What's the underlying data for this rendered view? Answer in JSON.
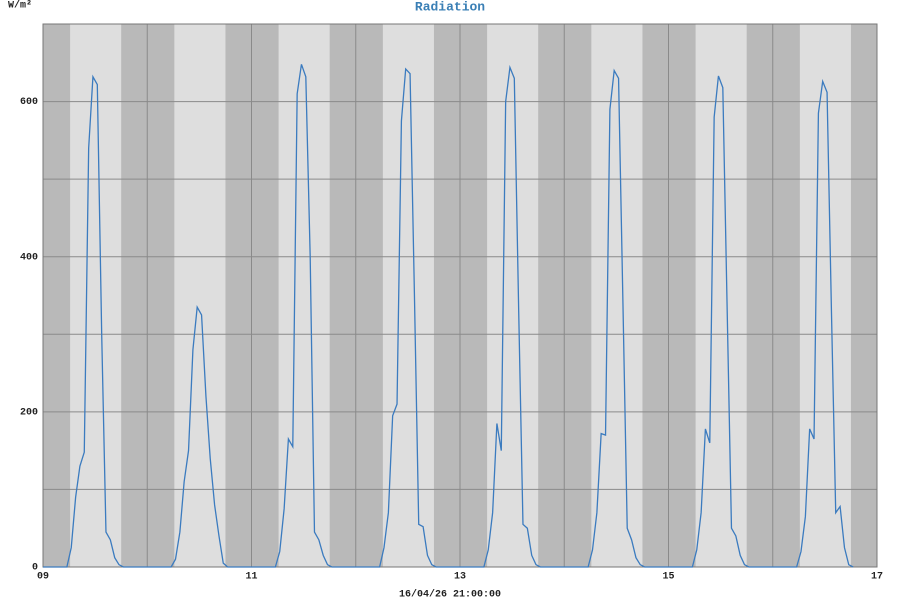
{
  "chart_data": {
    "type": "line",
    "title": "Radiation",
    "ylabel": "W/m²",
    "xlabel": "16/04/26 21:00:00",
    "color": "#3b7bbf",
    "grid": true,
    "xlim": [
      9,
      17
    ],
    "xticks": [
      {
        "value": 9,
        "label": "09"
      },
      {
        "value": 11,
        "label": "11"
      },
      {
        "value": 13,
        "label": "13"
      },
      {
        "value": 15,
        "label": "15"
      },
      {
        "value": 17,
        "label": "17"
      }
    ],
    "x_minor_ticks": [
      10,
      12,
      14,
      16
    ],
    "ylim": [
      0,
      700
    ],
    "yticks": [
      0,
      200,
      400,
      600
    ],
    "y_minor_ticks": [
      100,
      300,
      500
    ],
    "daylight": [
      0.26,
      0.75
    ],
    "x": [
      9.0,
      9.229,
      9.271,
      9.313,
      9.354,
      9.396,
      9.438,
      9.479,
      9.521,
      9.563,
      9.604,
      9.646,
      9.688,
      9.729,
      9.771,
      10.229,
      10.271,
      10.313,
      10.354,
      10.396,
      10.438,
      10.479,
      10.521,
      10.563,
      10.604,
      10.646,
      10.688,
      10.729,
      10.771,
      11.229,
      11.271,
      11.313,
      11.354,
      11.396,
      11.438,
      11.479,
      11.521,
      11.563,
      11.604,
      11.646,
      11.688,
      11.729,
      11.771,
      12.229,
      12.271,
      12.313,
      12.354,
      12.396,
      12.438,
      12.479,
      12.521,
      12.563,
      12.604,
      12.646,
      12.688,
      12.729,
      12.771,
      13.229,
      13.271,
      13.313,
      13.354,
      13.396,
      13.438,
      13.479,
      13.521,
      13.563,
      13.604,
      13.646,
      13.688,
      13.729,
      13.771,
      14.229,
      14.271,
      14.313,
      14.354,
      14.396,
      14.438,
      14.479,
      14.521,
      14.563,
      14.604,
      14.646,
      14.688,
      14.729,
      14.771,
      15.229,
      15.271,
      15.313,
      15.354,
      15.396,
      15.438,
      15.479,
      15.521,
      15.563,
      15.604,
      15.646,
      15.688,
      15.729,
      15.771,
      16.229,
      16.271,
      16.313,
      16.354,
      16.396,
      16.438,
      16.479,
      16.521,
      16.563,
      16.604,
      16.646,
      16.688,
      16.729,
      16.771
    ],
    "values": [
      0,
      0,
      25,
      90,
      130,
      148,
      540,
      632,
      622,
      300,
      45,
      35,
      12,
      3,
      0,
      0,
      10,
      45,
      110,
      150,
      280,
      335,
      325,
      220,
      140,
      80,
      40,
      5,
      0,
      0,
      20,
      75,
      165,
      155,
      610,
      648,
      632,
      400,
      45,
      35,
      15,
      3,
      0,
      0,
      25,
      70,
      195,
      210,
      575,
      642,
      636,
      350,
      55,
      52,
      15,
      3,
      0,
      0,
      22,
      70,
      185,
      150,
      600,
      644,
      630,
      330,
      55,
      50,
      15,
      3,
      0,
      0,
      22,
      70,
      172,
      170,
      590,
      640,
      630,
      340,
      50,
      35,
      12,
      3,
      0,
      0,
      22,
      70,
      178,
      160,
      580,
      633,
      618,
      330,
      50,
      40,
      15,
      3,
      0,
      0,
      20,
      65,
      178,
      165,
      585,
      626,
      612,
      330,
      70,
      78,
      25,
      3,
      0
    ]
  }
}
